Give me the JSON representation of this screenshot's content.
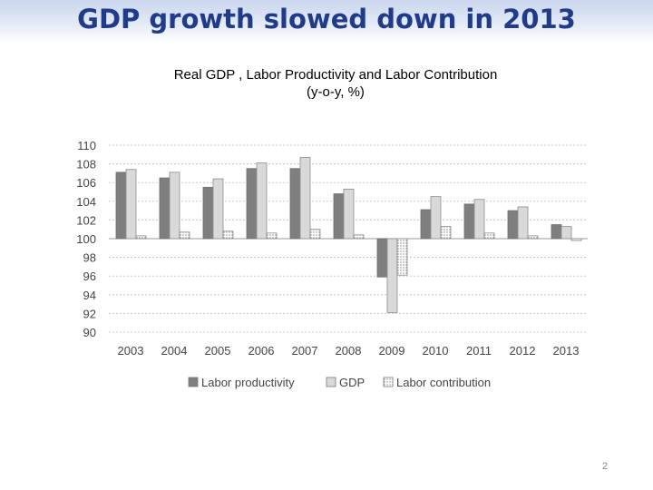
{
  "slide": {
    "title": "GDP growth slowed down in 2013",
    "page_number": "2"
  },
  "chart_data": {
    "type": "bar",
    "title": "Real GDP , Labor Productivity and Labor Contribution",
    "subtitle": "(y-o-y, %)",
    "xlabel": "",
    "ylabel": "",
    "ylim": [
      90,
      110
    ],
    "baseline": 100,
    "yticks": [
      110,
      108,
      106,
      104,
      102,
      100,
      98,
      96,
      94,
      92,
      90
    ],
    "categories": [
      "2003",
      "2004",
      "2005",
      "2006",
      "2007",
      "2008",
      "2009",
      "2010",
      "2011",
      "2012",
      "2013"
    ],
    "series": [
      {
        "name": "Labor productivity",
        "color": "#7f7f7f",
        "pattern": "solid",
        "values": [
          107.1,
          106.5,
          105.5,
          107.5,
          107.5,
          104.8,
          95.9,
          103.1,
          103.7,
          103.0,
          101.5
        ]
      },
      {
        "name": "GDP",
        "color": "#d9d9d9",
        "pattern": "solid",
        "values": [
          107.4,
          107.1,
          106.4,
          108.1,
          108.7,
          105.3,
          92.1,
          104.5,
          104.2,
          103.4,
          101.3
        ]
      },
      {
        "name": "Labor contribution",
        "color": "#ffffff",
        "pattern": "dotted",
        "values": [
          100.3,
          100.7,
          100.8,
          100.6,
          101.0,
          100.4,
          96.1,
          101.3,
          100.6,
          100.3,
          99.8
        ]
      }
    ],
    "grid": true,
    "legend": "bottom"
  }
}
